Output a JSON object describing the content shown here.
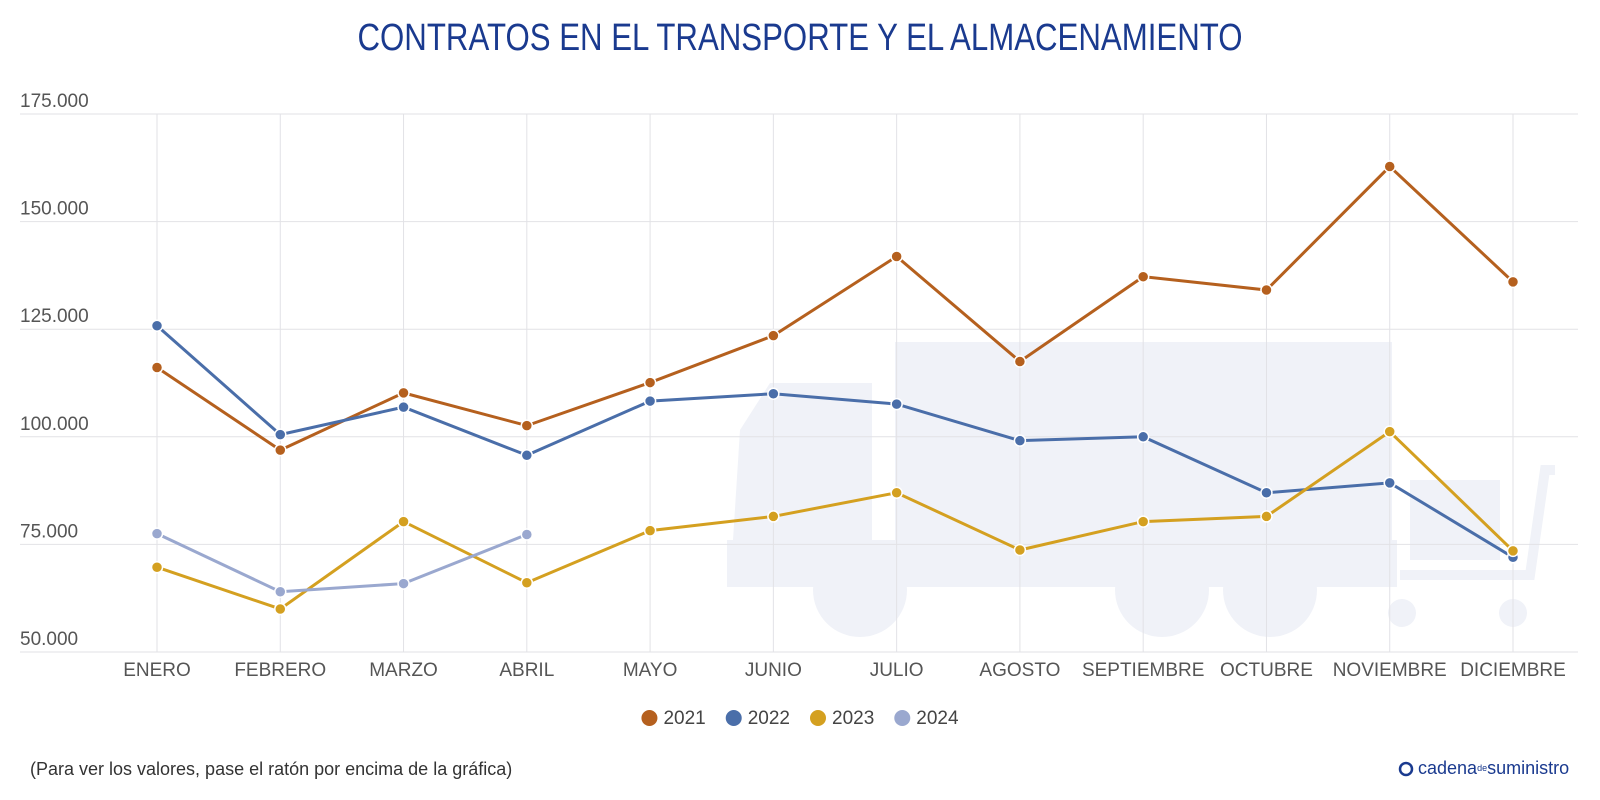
{
  "chart_data": {
    "type": "line",
    "title": "CONTRATOS EN EL TRANSPORTE Y EL ALMACENAMIENTO",
    "categories": [
      "ENERO",
      "FEBRERO",
      "MARZO",
      "ABRIL",
      "MAYO",
      "JUNIO",
      "JULIO",
      "AGOSTO",
      "SEPTIEMBRE",
      "OCTUBRE",
      "NOVIEMBRE",
      "DICIEMBRE"
    ],
    "series": [
      {
        "name": "2021",
        "color": "#b5601e",
        "values": [
          116100,
          96900,
          110200,
          102600,
          112600,
          123500,
          141900,
          117500,
          137200,
          134100,
          162800,
          136000
        ]
      },
      {
        "name": "2022",
        "color": "#4a6ea9",
        "values": [
          125800,
          100500,
          106900,
          95700,
          108300,
          110000,
          107600,
          99100,
          100000,
          87000,
          89300,
          72000
        ]
      },
      {
        "name": "2023",
        "color": "#d4a020",
        "values": [
          69700,
          60000,
          80300,
          66100,
          78200,
          81500,
          87000,
          73700,
          80300,
          81500,
          101200,
          73500
        ]
      },
      {
        "name": "2024",
        "color": "#9aa8cf",
        "values": [
          77500,
          64000,
          65900,
          77300,
          null,
          null,
          null,
          null,
          null,
          null,
          null,
          null
        ]
      }
    ],
    "ylim": [
      50000,
      175000
    ],
    "yticks": [
      {
        "value": 50000,
        "label": "50.000"
      },
      {
        "value": 75000,
        "label": "75.000"
      },
      {
        "value": 100000,
        "label": "100.000"
      },
      {
        "value": 125000,
        "label": "125.000"
      },
      {
        "value": 150000,
        "label": "150.000"
      },
      {
        "value": 175000,
        "label": "175.000"
      }
    ],
    "grid": true,
    "legend": "bottom",
    "note": "(Para ver los valores, pase el ratón por encima de la gráfica)",
    "brand": {
      "main": "cadena",
      "small": "de",
      "end": "suministro"
    }
  }
}
